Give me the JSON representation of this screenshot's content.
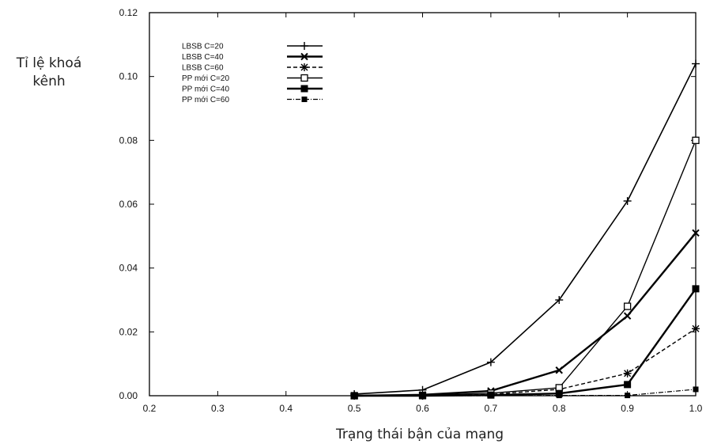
{
  "chart_data": {
    "type": "line",
    "title": "",
    "ylabel_lines": [
      "Tỉ lệ khoá",
      "kênh"
    ],
    "xlabel": "Trạng thái bận của mạng",
    "xlim": [
      0.2,
      1.0
    ],
    "ylim": [
      0,
      0.12
    ],
    "xticks": [
      "0.2",
      "0.3",
      "0.4",
      "0.5",
      "0.6",
      "0.7",
      "0.8",
      "0.9",
      "1.0"
    ],
    "yticks": [
      "0.00",
      "0.02",
      "0.04",
      "0.06",
      "0.08",
      "0.10",
      "0.12"
    ],
    "grid": false,
    "legend_position": "top-left",
    "x": [
      0.5,
      0.6,
      0.7,
      0.8,
      0.9,
      1.0
    ],
    "series": [
      {
        "name": "LBSB   C=20",
        "marker": "plus",
        "dash": "solid",
        "width": 1.6,
        "values": [
          0.0005,
          0.0018,
          0.0105,
          0.03,
          0.061,
          0.104
        ]
      },
      {
        "name": "LBSB   C=40",
        "marker": "x",
        "dash": "solid",
        "width": 2.4,
        "values": [
          0,
          0.0003,
          0.0015,
          0.008,
          0.025,
          0.051
        ]
      },
      {
        "name": "LBSB   C=60",
        "marker": "star",
        "dash": "dashed",
        "width": 1.4,
        "values": [
          0,
          0,
          0.0004,
          0.002,
          0.007,
          0.021
        ]
      },
      {
        "name": "PP mới C=20",
        "marker": "square-open",
        "dash": "solid",
        "width": 1.4,
        "values": [
          0,
          0.0001,
          0.0008,
          0.0025,
          0.028,
          0.08
        ]
      },
      {
        "name": "PP mới C=40",
        "marker": "square-filled",
        "dash": "solid",
        "width": 2.4,
        "values": [
          0,
          0,
          0.0002,
          0.0007,
          0.0035,
          0.0335
        ]
      },
      {
        "name": "PP mới C=60",
        "marker": "square-small",
        "dash": "dashdot",
        "width": 1.2,
        "values": [
          0,
          0,
          0,
          0.0001,
          0.0001,
          0.002
        ]
      }
    ]
  }
}
